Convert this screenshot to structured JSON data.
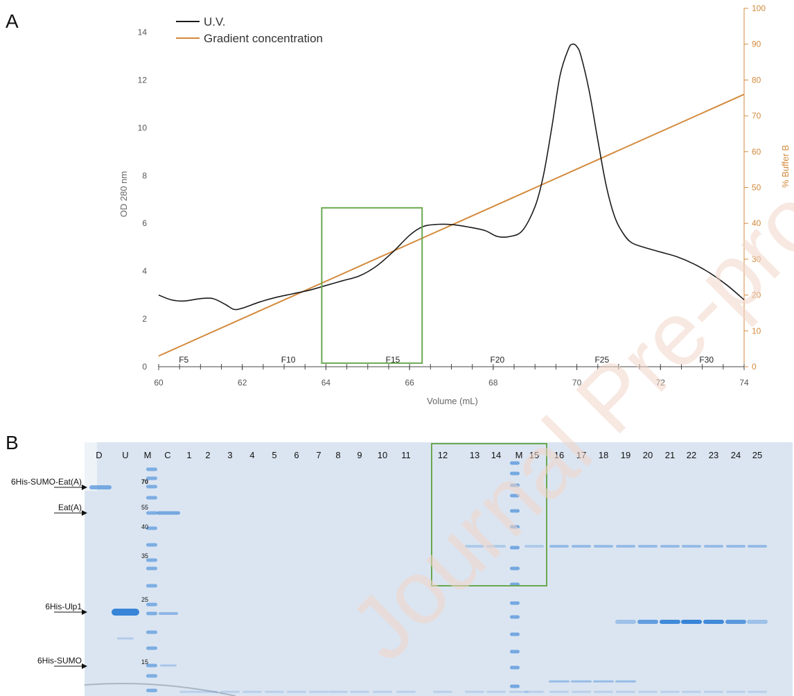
{
  "panel_a": {
    "letter": "A",
    "chart_data": {
      "type": "line",
      "xlabel": "Volume (mL)",
      "ylabel": "OD 280 nm",
      "y2label": "% Buffer B",
      "xlim": [
        60,
        74
      ],
      "ylim": [
        0,
        15
      ],
      "y2lim": [
        0,
        100
      ],
      "x_ticks": [
        "60",
        "62",
        "64",
        "66",
        "68",
        "70",
        "72",
        "74"
      ],
      "y_ticks": [
        "0",
        "2",
        "4",
        "6",
        "8",
        "10",
        "12",
        "14"
      ],
      "y2_ticks": [
        "0",
        "10",
        "20",
        "30",
        "40",
        "50",
        "60",
        "70",
        "80",
        "90",
        "100"
      ],
      "legend_position": "top-left",
      "series": [
        {
          "name": "U.V.",
          "color": "#1a1a1a",
          "axis": "left",
          "x": [
            60.0,
            60.3,
            60.6,
            61.0,
            61.3,
            61.6,
            61.8,
            62.0,
            62.4,
            62.8,
            63.2,
            63.6,
            64.0,
            64.4,
            64.8,
            65.2,
            65.6,
            66.0,
            66.3,
            66.6,
            67.0,
            67.4,
            67.8,
            68.1,
            68.4,
            68.7,
            69.0,
            69.2,
            69.4,
            69.6,
            69.8,
            69.9,
            70.0,
            70.1,
            70.3,
            70.5,
            70.7,
            70.9,
            71.1,
            71.3,
            71.6,
            72.0,
            72.4,
            72.8,
            73.2,
            73.6,
            74.0
          ],
          "y": [
            3.0,
            2.8,
            2.75,
            2.85,
            2.85,
            2.6,
            2.4,
            2.45,
            2.7,
            2.9,
            3.05,
            3.2,
            3.4,
            3.6,
            3.8,
            4.2,
            4.8,
            5.5,
            5.85,
            5.95,
            5.95,
            5.85,
            5.7,
            5.45,
            5.45,
            5.7,
            6.7,
            8.0,
            10.0,
            12.2,
            13.3,
            13.5,
            13.4,
            13.0,
            11.5,
            9.5,
            7.6,
            6.3,
            5.6,
            5.2,
            5.0,
            4.8,
            4.6,
            4.3,
            3.9,
            3.4,
            2.8
          ]
        },
        {
          "name": "Gradient concentration",
          "color": "#d38a3c",
          "axis": "right",
          "x": [
            60,
            74
          ],
          "y": [
            3,
            76
          ]
        }
      ],
      "fraction_labels": [
        {
          "label": "F5",
          "x": 60.6
        },
        {
          "label": "F10",
          "x": 63.1
        },
        {
          "label": "F15",
          "x": 65.6
        },
        {
          "label": "F20",
          "x": 68.1
        },
        {
          "label": "F25",
          "x": 70.6
        },
        {
          "label": "F30",
          "x": 73.1
        }
      ],
      "highlight_box": {
        "x": [
          63.9,
          66.3
        ],
        "y": [
          0.15,
          6.65
        ],
        "color": "#6aa84f"
      }
    }
  },
  "panel_b": {
    "letter": "B",
    "lanes": [
      "D",
      "U",
      "M",
      "C",
      "1",
      "2",
      "3",
      "4",
      "5",
      "6",
      "7",
      "8",
      "9",
      "10",
      "11",
      "12",
      "13",
      "14",
      "M",
      "15",
      "16",
      "17",
      "18",
      "19",
      "20",
      "21",
      "22",
      "23",
      "24",
      "25"
    ],
    "band_labels": [
      "6His-SUMO-Eat(A)",
      "Eat(A)",
      "6His-Ulp1",
      "6His-SUMO"
    ],
    "marker_sizes": [
      "70",
      "55",
      "40",
      "35",
      "25",
      "15"
    ],
    "gel_color": "#dbe5f1",
    "band_color": "#2f7fd6",
    "highlight_color": "#6aa84f"
  },
  "watermark": "Journal Pre-proof"
}
